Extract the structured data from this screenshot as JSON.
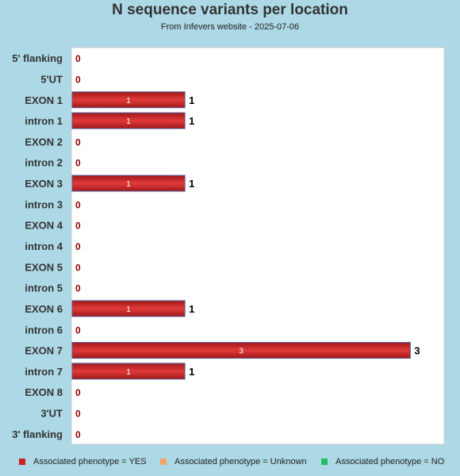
{
  "chart_data": {
    "type": "bar",
    "orientation": "horizontal",
    "title": "N sequence variants per location",
    "subtitle": "From Infevers website - 2025-07-06",
    "categories": [
      "5' flanking",
      "5'UT",
      "EXON 1",
      "intron 1",
      "EXON 2",
      "intron 2",
      "EXON 3",
      "intron 3",
      "EXON 4",
      "intron 4",
      "EXON 5",
      "intron 5",
      "EXON 6",
      "intron 6",
      "EXON 7",
      "intron 7",
      "EXON 8",
      "3'UT",
      "3' flanking"
    ],
    "series": [
      {
        "name": "Associated phenotype = YES",
        "color": "#cc2222",
        "values": [
          0,
          0,
          1,
          1,
          0,
          0,
          1,
          0,
          0,
          0,
          0,
          0,
          1,
          0,
          3,
          1,
          0,
          0,
          0
        ]
      }
    ],
    "xlim": [
      0,
      3.3
    ],
    "grid": false,
    "legend_position": "bottom"
  },
  "legend": [
    {
      "label": "Associated phenotype = YES",
      "color": "#cc2222"
    },
    {
      "label": "Associated phenotype = Unknown",
      "color": "#f4a460"
    },
    {
      "label": "Associated phenotype = NO",
      "color": "#22bb66"
    }
  ]
}
